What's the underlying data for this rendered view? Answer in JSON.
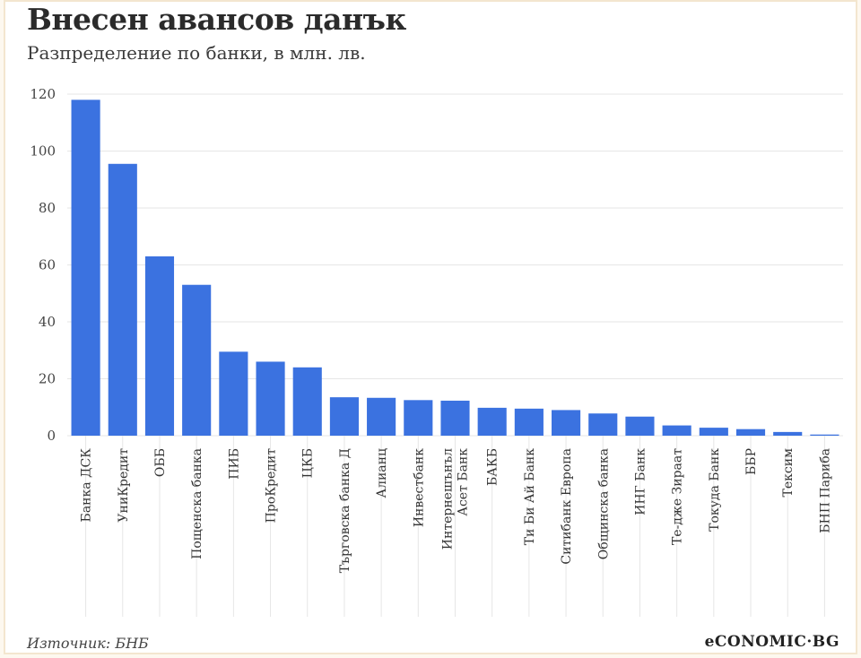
{
  "header": {
    "title": "Внесен авансов данък",
    "subtitle": "Разпределение по банки, в млн. лв."
  },
  "footer": {
    "source": "Източник: БНБ",
    "logo": "eCONOMIC·BG"
  },
  "colors": {
    "bar": "#3b72e0",
    "grid": "#e6e6e6",
    "background": "#ffffff"
  },
  "chart_data": {
    "type": "bar",
    "title": "Внесен авансов данък",
    "subtitle": "Разпределение по банки, в млн. лв.",
    "xlabel": "",
    "ylabel": "",
    "ylim": [
      0,
      120
    ],
    "yticks": [
      0,
      20,
      40,
      60,
      80,
      100,
      120
    ],
    "grid": true,
    "legend": "none",
    "categories": [
      [
        "Банка ДСК"
      ],
      [
        "УниКредит"
      ],
      [
        "ОББ"
      ],
      [
        "Пощенска банка"
      ],
      [
        "ПИБ"
      ],
      [
        "ПроКредит"
      ],
      [
        "ЦКБ"
      ],
      [
        "Търговска банка Д"
      ],
      [
        "Алианц"
      ],
      [
        "Инвестбанк"
      ],
      [
        "Интернешънъл",
        "Асет Банк"
      ],
      [
        "БАКБ"
      ],
      [
        "Ти Би Ай Банк"
      ],
      [
        "Ситибанк Европа"
      ],
      [
        "Общинска банка"
      ],
      [
        "ИНГ Банк"
      ],
      [
        "Те-дже Зираат"
      ],
      [
        "Токуда Банк"
      ],
      [
        "ББР"
      ],
      [
        "Тексим"
      ],
      [
        "БНП Париба"
      ]
    ],
    "values": [
      118,
      95.5,
      63,
      53,
      29.5,
      26,
      24,
      13.5,
      13.3,
      12.5,
      12.3,
      9.8,
      9.5,
      9,
      7.8,
      6.7,
      3.6,
      2.8,
      2.3,
      1.3,
      0.4
    ]
  }
}
